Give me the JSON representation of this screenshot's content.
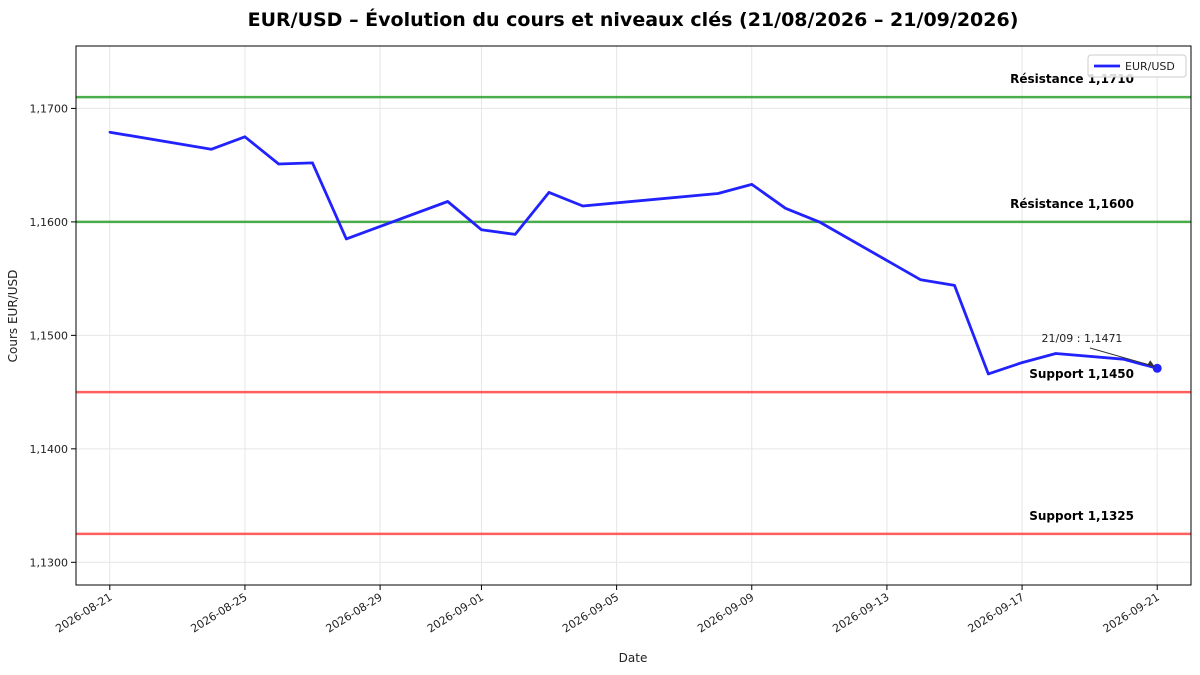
{
  "chart_data": {
    "type": "line",
    "title": "EUR/USD – Évolution du cours et niveaux clés (21/08/2026 – 21/09/2026)",
    "xlabel": "Date",
    "ylabel": "Cours EUR/USD",
    "xlim": [
      "2026-08-20",
      "2026-09-22"
    ],
    "ylim": [
      1.128,
      1.1755
    ],
    "grid": true,
    "legend_position": "top-right",
    "x_ticks": [
      "2026-08-21",
      "2026-08-25",
      "2026-08-29",
      "2026-09-01",
      "2026-09-05",
      "2026-09-09",
      "2026-09-13",
      "2026-09-17",
      "2026-09-21"
    ],
    "y_ticks": [
      1.13,
      1.14,
      1.15,
      1.16,
      1.17
    ],
    "y_tick_labels": [
      "1,1300",
      "1,1400",
      "1,1500",
      "1,1600",
      "1,1700"
    ],
    "series": [
      {
        "name": "EUR/USD",
        "color": "#2222ff",
        "points": [
          {
            "x": "2026-08-21",
            "y": 1.1679
          },
          {
            "x": "2026-08-24",
            "y": 1.1664
          },
          {
            "x": "2026-08-25",
            "y": 1.1675
          },
          {
            "x": "2026-08-26",
            "y": 1.1651
          },
          {
            "x": "2026-08-27",
            "y": 1.1652
          },
          {
            "x": "2026-08-28",
            "y": 1.1585
          },
          {
            "x": "2026-08-31",
            "y": 1.1618
          },
          {
            "x": "2026-09-01",
            "y": 1.1593
          },
          {
            "x": "2026-09-02",
            "y": 1.1589
          },
          {
            "x": "2026-09-03",
            "y": 1.1626
          },
          {
            "x": "2026-09-04",
            "y": 1.1614
          },
          {
            "x": "2026-09-08",
            "y": 1.1625
          },
          {
            "x": "2026-09-09",
            "y": 1.1633
          },
          {
            "x": "2026-09-10",
            "y": 1.1612
          },
          {
            "x": "2026-09-11",
            "y": 1.16
          },
          {
            "x": "2026-09-14",
            "y": 1.1549
          },
          {
            "x": "2026-09-15",
            "y": 1.1544
          },
          {
            "x": "2026-09-16",
            "y": 1.1466
          },
          {
            "x": "2026-09-17",
            "y": 1.1476
          },
          {
            "x": "2026-09-18",
            "y": 1.1484
          },
          {
            "x": "2026-09-20",
            "y": 1.1479
          },
          {
            "x": "2026-09-21",
            "y": 1.1471
          }
        ]
      }
    ],
    "levels": [
      {
        "label": "Résistance 1,1710",
        "y": 1.171,
        "color": "#2ca02c"
      },
      {
        "label": "Résistance 1,1600",
        "y": 1.16,
        "color": "#2ca02c"
      },
      {
        "label": "Support 1,1450",
        "y": 1.145,
        "color": "#ff4444"
      },
      {
        "label": "Support 1,1325",
        "y": 1.1325,
        "color": "#ff4444"
      }
    ],
    "annotation": {
      "text": "21/09 : 1,1471",
      "x": "2026-09-21",
      "y": 1.1471
    }
  }
}
